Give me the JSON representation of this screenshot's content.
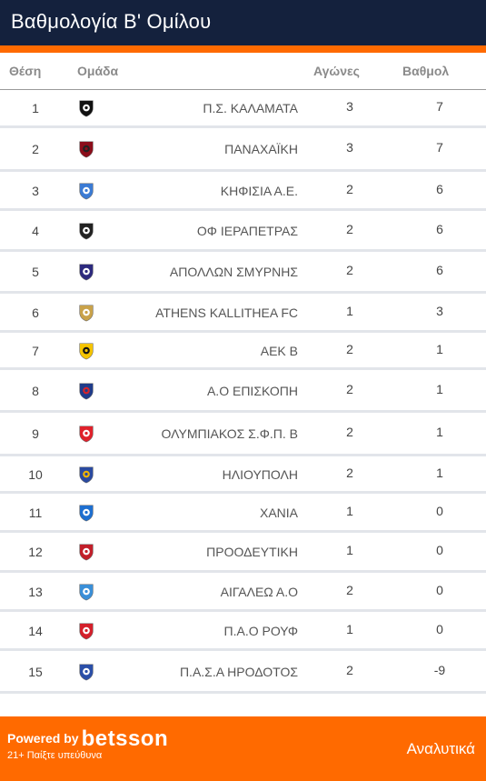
{
  "header": {
    "title": "Βαθμολογία Β' Ομίλου"
  },
  "table": {
    "columns": {
      "position": "Θέση",
      "team": "Ομάδα",
      "games": "Αγώνες",
      "points": "Βαθμολ"
    },
    "rows": [
      {
        "position": "1",
        "team": "Π.Σ. ΚΑΛΑΜΑΤΑ",
        "games": "3",
        "points": "7",
        "crest": "kalamata-crest-icon",
        "crest_colors": [
          "#111111",
          "#ffffff"
        ]
      },
      {
        "position": "2",
        "team": "ΠΑΝΑΧΑΪΚΗ",
        "games": "3",
        "points": "7",
        "crest": "panachaiki-crest-icon",
        "crest_colors": [
          "#8b0d1a",
          "#222222"
        ]
      },
      {
        "position": "3",
        "team": "ΚΗΦΙΣΙΑ Α.Ε.",
        "games": "2",
        "points": "6",
        "crest": "kifisia-crest-icon",
        "crest_colors": [
          "#3b7bd4",
          "#ffffff"
        ]
      },
      {
        "position": "4",
        "team": "ΟΦ ΙΕΡΑΠΕΤΡΑΣ",
        "games": "2",
        "points": "6",
        "crest": "ierapetra-crest-icon",
        "crest_colors": [
          "#222222",
          "#ffffff"
        ]
      },
      {
        "position": "5",
        "team": "ΑΠΟΛΛΩΝ ΣΜΥΡΝΗΣ",
        "games": "2",
        "points": "6",
        "crest": "apollon-crest-icon",
        "crest_colors": [
          "#2d2a7e",
          "#ffffff"
        ]
      },
      {
        "position": "6",
        "team": "ATHENS KALLITHEA FC",
        "games": "1",
        "points": "3",
        "crest": "kallithea-crest-icon",
        "crest_colors": [
          "#c9a24a",
          "#ffffff"
        ]
      },
      {
        "position": "7",
        "team": "ΑΕΚ Β",
        "games": "2",
        "points": "1",
        "crest": "aek-crest-icon",
        "crest_colors": [
          "#f5c400",
          "#111111"
        ]
      },
      {
        "position": "8",
        "team": "Α.Ο ΕΠΙΣΚΟΠΗ",
        "games": "2",
        "points": "1",
        "crest": "episkopi-crest-icon",
        "crest_colors": [
          "#1f3c8a",
          "#d6242a"
        ]
      },
      {
        "position": "9",
        "team": "ΟΛΥΜΠΙΑΚΟΣ Σ.Φ.Π. Β",
        "games": "2",
        "points": "1",
        "crest": "olympiakos-crest-icon",
        "crest_colors": [
          "#e0212b",
          "#ffffff"
        ]
      },
      {
        "position": "10",
        "team": "ΗΛΙΟΥΠΟΛΗ",
        "games": "2",
        "points": "1",
        "crest": "ilioupoli-crest-icon",
        "crest_colors": [
          "#2a4aa0",
          "#f0b400"
        ]
      },
      {
        "position": "11",
        "team": "ΧΑΝΙΑ",
        "games": "1",
        "points": "0",
        "crest": "chania-crest-icon",
        "crest_colors": [
          "#1e6fd0",
          "#ffffff"
        ]
      },
      {
        "position": "12",
        "team": "ΠΡΟΟΔΕΥΤΙΚΗ",
        "games": "1",
        "points": "0",
        "crest": "proodeftiki-crest-icon",
        "crest_colors": [
          "#c21f2a",
          "#ffffff"
        ]
      },
      {
        "position": "13",
        "team": "ΑΙΓΑΛΕΩ Α.Ο",
        "games": "2",
        "points": "0",
        "crest": "aigaleo-crest-icon",
        "crest_colors": [
          "#3a8fd8",
          "#ffffff"
        ]
      },
      {
        "position": "14",
        "team": "Π.Α.Ο ΡΟΥΦ",
        "games": "1",
        "points": "0",
        "crest": "rouf-crest-icon",
        "crest_colors": [
          "#d4202b",
          "#ffffff"
        ]
      },
      {
        "position": "15",
        "team": "Π.Α.Σ.Α ΗΡΟΔΟΤΟΣ",
        "games": "2",
        "points": "-9",
        "crest": "irodotos-crest-icon",
        "crest_colors": [
          "#2b4fa8",
          "#ffffff"
        ]
      }
    ]
  },
  "footer": {
    "powered_by": "Powered by",
    "brand": "betsson",
    "disclaimer": "21+ Παίξτε υπεύθυνα",
    "link_label": "Αναλυτικά",
    "background": "#ff6a00"
  },
  "colors": {
    "header": "#14213d",
    "accent": "#ff6a00",
    "row_divider": "#e2e5ea"
  }
}
